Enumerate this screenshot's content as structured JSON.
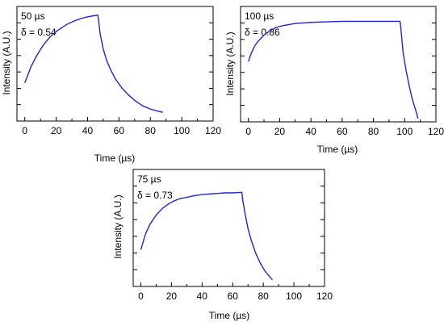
{
  "colors": {
    "line": "#1f24d6",
    "axis": "#000000",
    "background": "#ffffff"
  },
  "chart_data": [
    {
      "type": "line",
      "title": "",
      "xlabel": "Time (µs)",
      "ylabel": "Intensity (A.U.)",
      "xlim": [
        -5,
        120
      ],
      "ylim": [
        0,
        1.05
      ],
      "x_ticks": [
        0,
        20,
        40,
        60,
        80,
        100,
        120
      ],
      "y_tick_labels_shown": false,
      "grid": false,
      "annotations": [
        "50 µs",
        "δ = 0.54"
      ],
      "pulse_width_us": 50,
      "duty_cycle": 0.54,
      "series": [
        {
          "x": [
            0,
            4,
            8,
            12,
            16,
            20,
            24,
            28,
            32,
            36,
            40,
            44,
            46.5,
            47,
            48,
            50,
            52,
            55,
            58,
            62,
            66,
            70,
            75,
            80,
            85,
            88
          ],
          "y": [
            0.35,
            0.5,
            0.61,
            0.7,
            0.77,
            0.82,
            0.86,
            0.895,
            0.92,
            0.94,
            0.955,
            0.965,
            0.97,
            0.92,
            0.8,
            0.66,
            0.56,
            0.46,
            0.38,
            0.3,
            0.24,
            0.19,
            0.14,
            0.11,
            0.09,
            0.08
          ]
        }
      ]
    },
    {
      "type": "line",
      "title": "",
      "xlabel": "Time (µs)",
      "ylabel": "Intensity (A.U.)",
      "xlim": [
        -5,
        120
      ],
      "ylim": [
        0,
        1.05
      ],
      "x_ticks": [
        0,
        20,
        40,
        60,
        80,
        100,
        120
      ],
      "y_tick_labels_shown": false,
      "grid": false,
      "annotations": [
        "100 µs",
        "δ = 0.86"
      ],
      "pulse_width_us": 100,
      "duty_cycle": 0.86,
      "series": [
        {
          "x": [
            0,
            2,
            4,
            6,
            8,
            10,
            14,
            18,
            22,
            26,
            30,
            35,
            40,
            50,
            60,
            70,
            80,
            90,
            97,
            97.5,
            99,
            101,
            103,
            105,
            107,
            108.5
          ],
          "y": [
            0.55,
            0.63,
            0.69,
            0.73,
            0.76,
            0.79,
            0.83,
            0.86,
            0.875,
            0.885,
            0.895,
            0.9,
            0.905,
            0.91,
            0.915,
            0.915,
            0.915,
            0.915,
            0.915,
            0.86,
            0.63,
            0.46,
            0.32,
            0.2,
            0.11,
            0.03
          ]
        }
      ]
    },
    {
      "type": "line",
      "title": "",
      "xlabel": "Time (µs)",
      "ylabel": "Intensity (A.U.)",
      "xlim": [
        -5,
        120
      ],
      "ylim": [
        0,
        1.05
      ],
      "x_ticks": [
        0,
        20,
        40,
        60,
        80,
        100,
        120
      ],
      "y_tick_labels_shown": false,
      "grid": false,
      "annotations": [
        "75 µs",
        "δ = 0.73"
      ],
      "pulse_width_us": 75,
      "duty_cycle": 0.73,
      "series": [
        {
          "x": [
            0,
            3,
            6,
            10,
            14,
            18,
            22,
            26,
            30,
            35,
            40,
            45,
            50,
            55,
            60,
            66,
            66.5,
            68,
            70,
            72,
            75,
            78,
            81,
            84,
            86
          ],
          "y": [
            0.33,
            0.47,
            0.56,
            0.64,
            0.7,
            0.74,
            0.77,
            0.79,
            0.8,
            0.815,
            0.825,
            0.83,
            0.835,
            0.84,
            0.84,
            0.845,
            0.78,
            0.66,
            0.52,
            0.42,
            0.3,
            0.21,
            0.14,
            0.09,
            0.06
          ]
        }
      ]
    }
  ]
}
